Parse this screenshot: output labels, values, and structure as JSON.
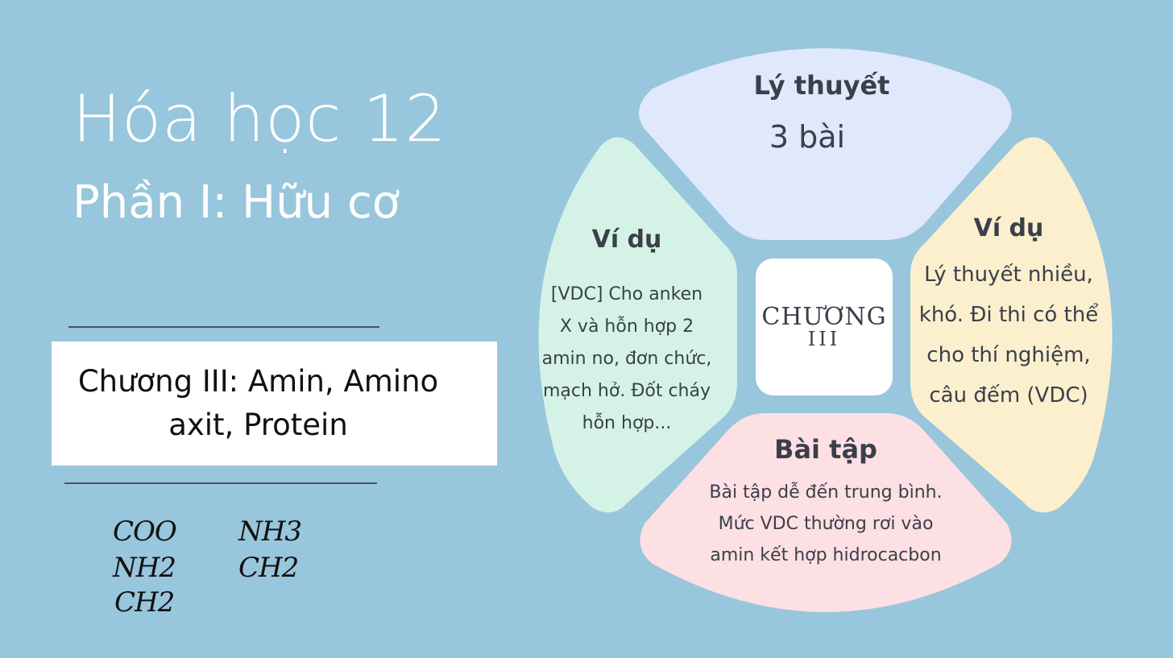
{
  "title": "Hóa học 12",
  "subtitle": "Phần I: Hữu cơ",
  "chapter": "Chương III: Amin, Amino axit, Protein",
  "formulas": [
    "COO",
    "NH2",
    "CH2",
    "NH3",
    "CH2"
  ],
  "diagram": {
    "center": {
      "line1": "CHƯƠNG",
      "line2": "III"
    },
    "top": {
      "heading": "Lý thuyết",
      "body": "3 bài",
      "color": "#e0e8fb"
    },
    "right": {
      "heading": "Ví dụ",
      "lines": [
        "Lý thuyết nhiều,",
        "khó. Đi thi có thể",
        "cho thí nghiệm,",
        "câu đếm (VDC)"
      ],
      "color": "#fcefce"
    },
    "bottom": {
      "heading": "Bài tập",
      "lines": [
        "Bài tập dễ đến trung bình.",
        "Mức VDC thường rơi vào",
        "amin kết hợp hidrocacbon"
      ],
      "color": "#fde0e3"
    },
    "left": {
      "heading": "Ví dụ",
      "lines": [
        "[VDC] Cho anken",
        "X và hỗn hợp 2",
        "amin no, đơn chức,",
        "mạch hở. Đốt cháy",
        "hỗn hợp..."
      ],
      "color": "#d4f3e6"
    }
  }
}
